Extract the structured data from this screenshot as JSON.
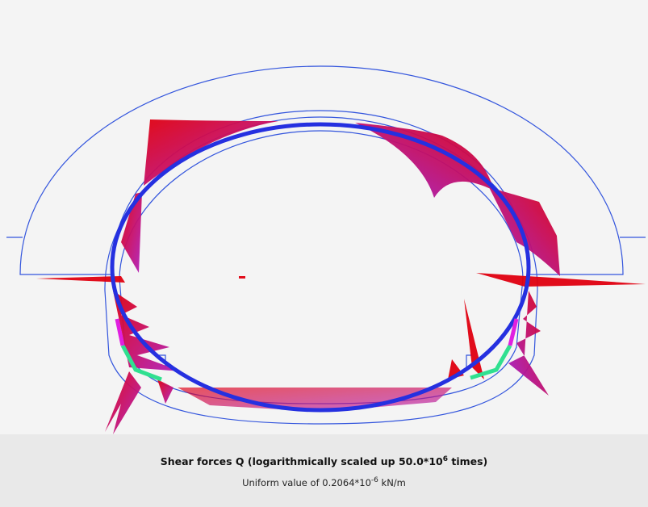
{
  "caption": {
    "title": {
      "prefix": "Shear forces Q (logarithmically scaled up 50.0*10",
      "exponent": "6",
      "suffix": " times)"
    },
    "subtitle": {
      "prefix": "Uniform value of 0.2064*10",
      "exponent": "-6",
      "suffix": " kN/m"
    }
  }
}
